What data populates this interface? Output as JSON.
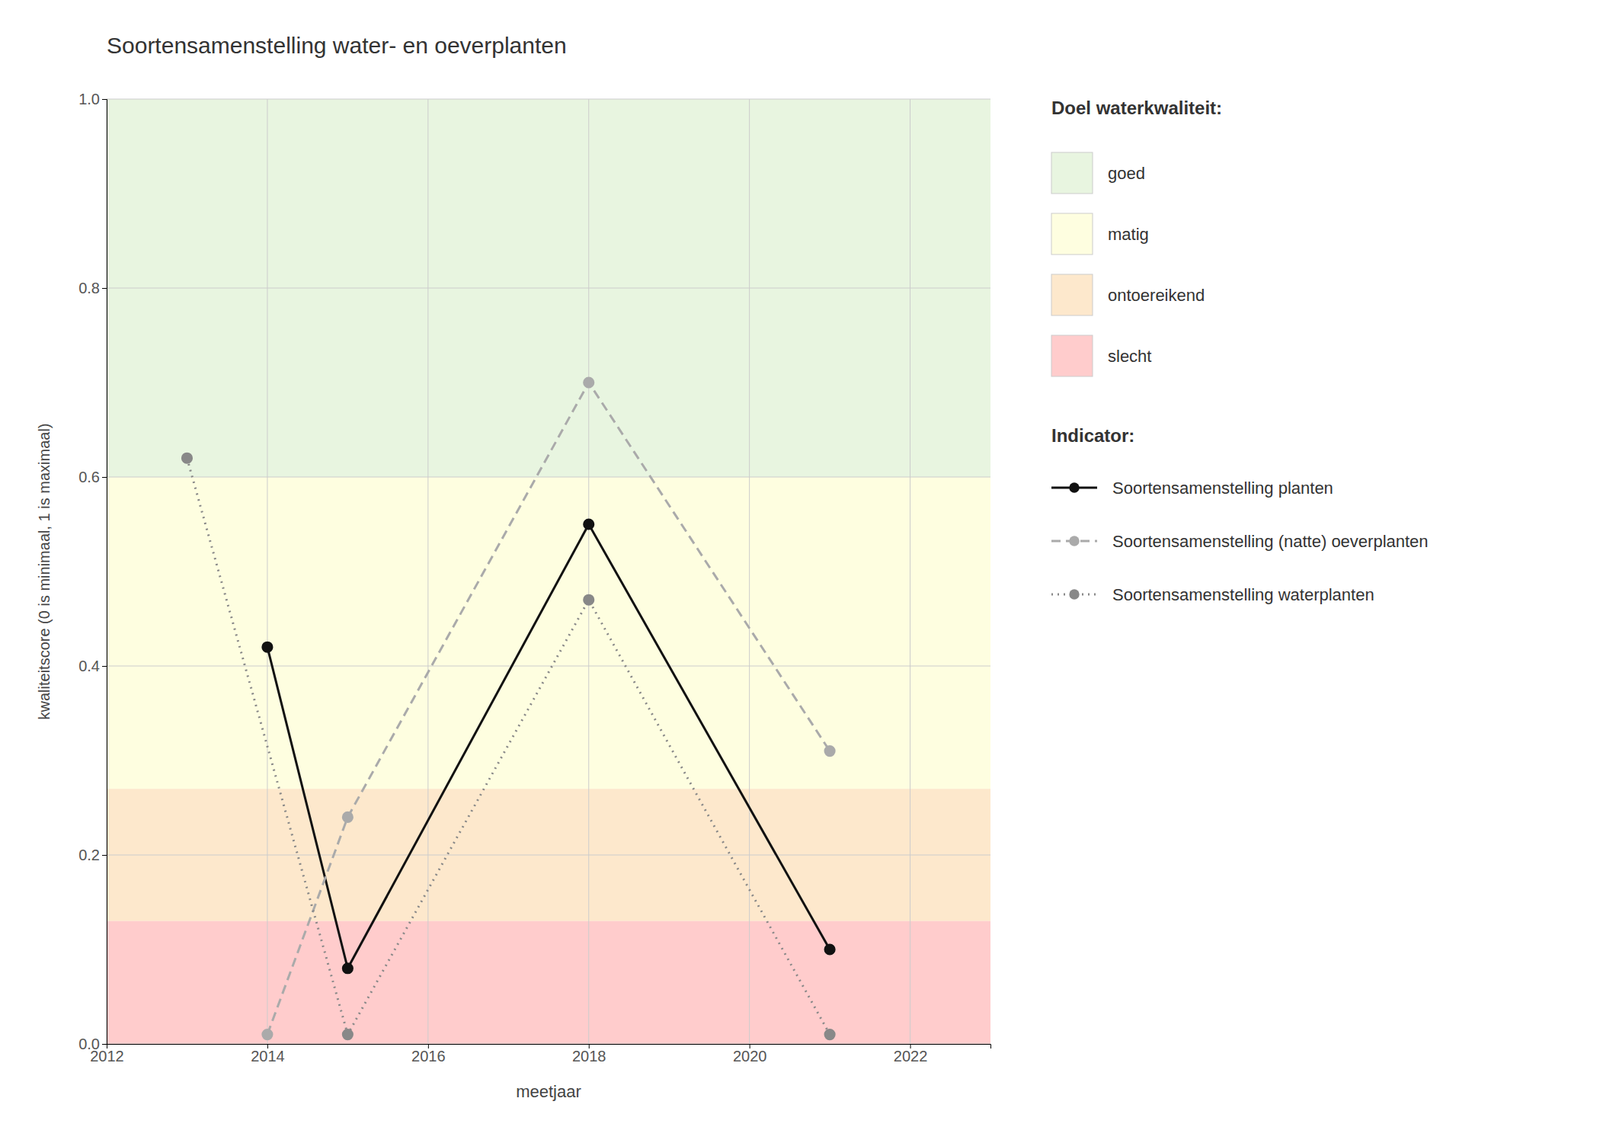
{
  "chart_data": {
    "type": "line",
    "title": "Soortensamenstelling water- en oeverplanten",
    "x_label": "meetjaar",
    "y_label": "kwaliteitscore (0 is minimaal, 1 is maximaal)",
    "xlim": [
      2012,
      2023
    ],
    "ylim": [
      0.0,
      1.0
    ],
    "xticks": [
      2012,
      2014,
      2016,
      2018,
      2020,
      2022
    ],
    "yticks": [
      {
        "value": 0.0,
        "label": "0.0"
      },
      0.2,
      0.4,
      0.6,
      0.8,
      {
        "value": 1.0,
        "label": "1.0"
      }
    ],
    "grid": true,
    "legend": "right",
    "band_legend_title": "Doel waterkwaliteit:",
    "series_legend_title": "Indicator:",
    "bands": [
      {
        "name": "goed",
        "from": 0.6,
        "to": 1.0,
        "color": "#e8f5e0"
      },
      {
        "name": "matig",
        "from": 0.27,
        "to": 0.6,
        "color": "#fefee0"
      },
      {
        "name": "ontoereikend",
        "from": 0.13,
        "to": 0.27,
        "color": "#fde8cc"
      },
      {
        "name": "slecht",
        "from": 0.0,
        "to": 0.13,
        "color": "#ffcccc"
      }
    ],
    "series": [
      {
        "name": "Soortensamenstelling planten",
        "color": "#111111",
        "line_style": "solid",
        "marker": "circle",
        "x": [
          2014,
          2015,
          2018,
          2021
        ],
        "values": [
          0.42,
          0.08,
          0.55,
          0.1
        ]
      },
      {
        "name": "Soortensamenstelling (natte) oeverplanten",
        "color": "#aaaaaa",
        "line_style": "dashed",
        "marker": "circle",
        "x": [
          2014,
          2015,
          2018,
          2021
        ],
        "values": [
          0.01,
          0.24,
          0.7,
          0.31
        ]
      },
      {
        "name": "Soortensamenstelling waterplanten",
        "color": "#888888",
        "line_style": "dotted",
        "marker": "circle",
        "x": [
          2013,
          2015,
          2018,
          2021
        ],
        "values": [
          0.62,
          0.01,
          0.47,
          0.01
        ]
      }
    ]
  }
}
